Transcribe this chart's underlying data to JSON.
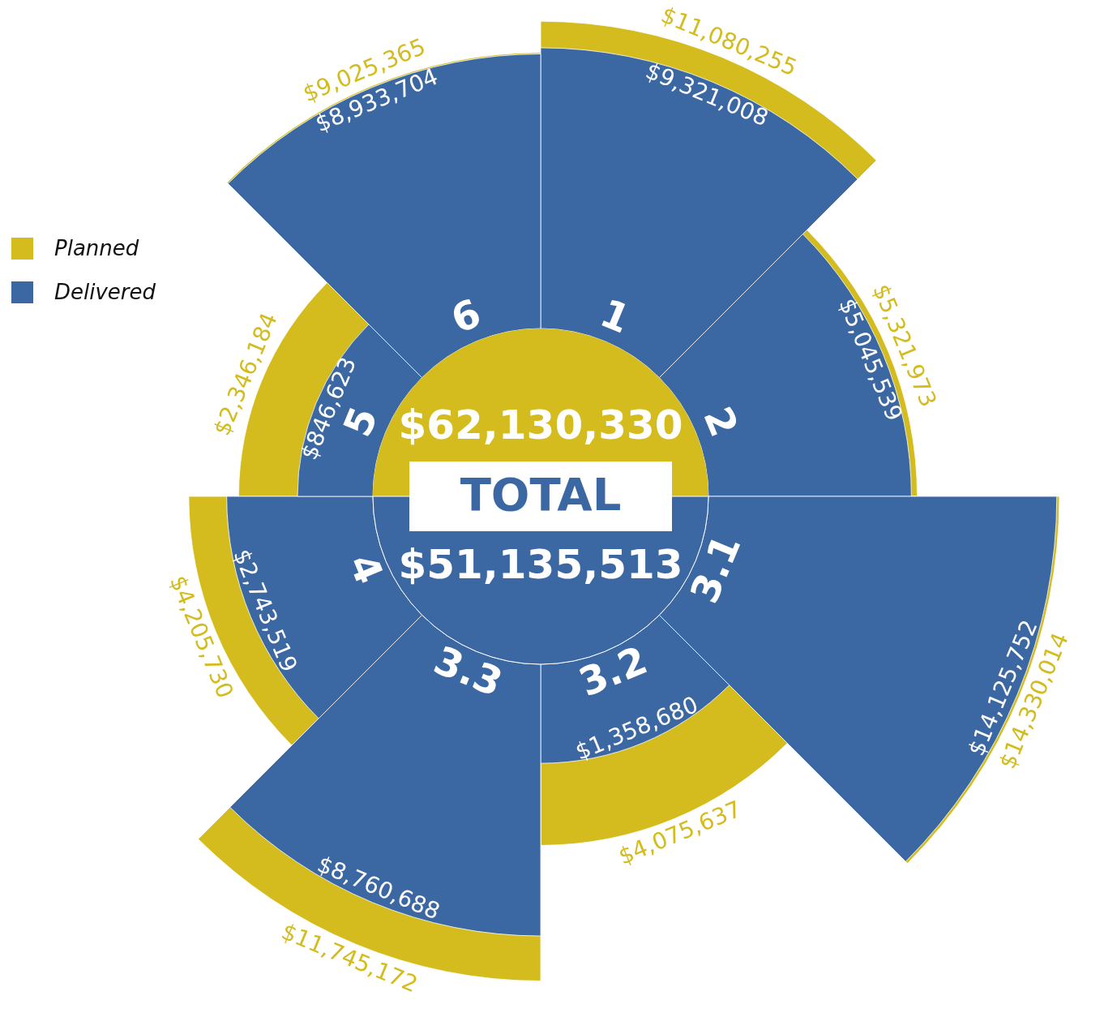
{
  "chart_data": {
    "type": "other",
    "categories": [
      "1",
      "2",
      "3.1",
      "3.2",
      "3.3",
      "4",
      "5",
      "6"
    ],
    "series": [
      {
        "name": "Planned",
        "color": "#d4bc1e",
        "values": [
          11080255,
          5321973,
          14330014,
          4075637,
          11745172,
          4205730,
          2346184,
          9025365
        ],
        "value_labels": [
          "$11,080,255",
          "$5,321,973",
          "$14,330,014",
          "$4,075,637",
          "$11,745,172",
          "$4,205,730",
          "$2,346,184",
          "$9,025,365"
        ]
      },
      {
        "name": "Delivered",
        "color": "#3b68a3",
        "values": [
          9321008,
          5045539,
          14125752,
          1358680,
          8760688,
          2743519,
          846623,
          8933704
        ],
        "value_labels": [
          "$9,321,008",
          "$5,045,539",
          "$14,125,752",
          "$1,358,680",
          "$8,760,688",
          "$2,743,519",
          "$846,623",
          "$8,933,704"
        ]
      }
    ],
    "legend": "left",
    "annotations": [
      "$62,130,330",
      "TOTAL",
      "$51,135,513"
    ]
  }
}
